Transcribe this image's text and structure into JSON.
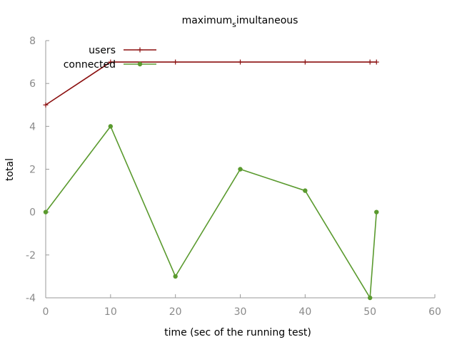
{
  "chart_data": {
    "type": "line",
    "title": "maximum simultaneous",
    "title_main": "maximum",
    "title_sub": "s",
    "title_rest": "imultaneous",
    "xlabel": "time (sec of the running test)",
    "ylabel": "total",
    "xlim": [
      0,
      60
    ],
    "ylim": [
      -4,
      8
    ],
    "x_ticks": [
      "0",
      "10",
      "20",
      "30",
      "40",
      "50",
      "60"
    ],
    "y_ticks": [
      "-4",
      "-2",
      "0",
      "2",
      "4",
      "6",
      "8"
    ],
    "grid": false,
    "legend_position": "top-left",
    "series": [
      {
        "name": "users",
        "color": "#8b0f0f",
        "marker": "plus",
        "points": [
          [
            0,
            5
          ],
          [
            10,
            7
          ],
          [
            20,
            7
          ],
          [
            30,
            7
          ],
          [
            40,
            7
          ],
          [
            50,
            7
          ],
          [
            51,
            7
          ]
        ]
      },
      {
        "name": "connected",
        "color": "#5a9a2e",
        "marker": "dot",
        "points": [
          [
            0,
            0
          ],
          [
            10,
            4
          ],
          [
            20,
            -3
          ],
          [
            30,
            2
          ],
          [
            40,
            1
          ],
          [
            50,
            -4
          ],
          [
            51,
            0
          ]
        ]
      }
    ]
  }
}
